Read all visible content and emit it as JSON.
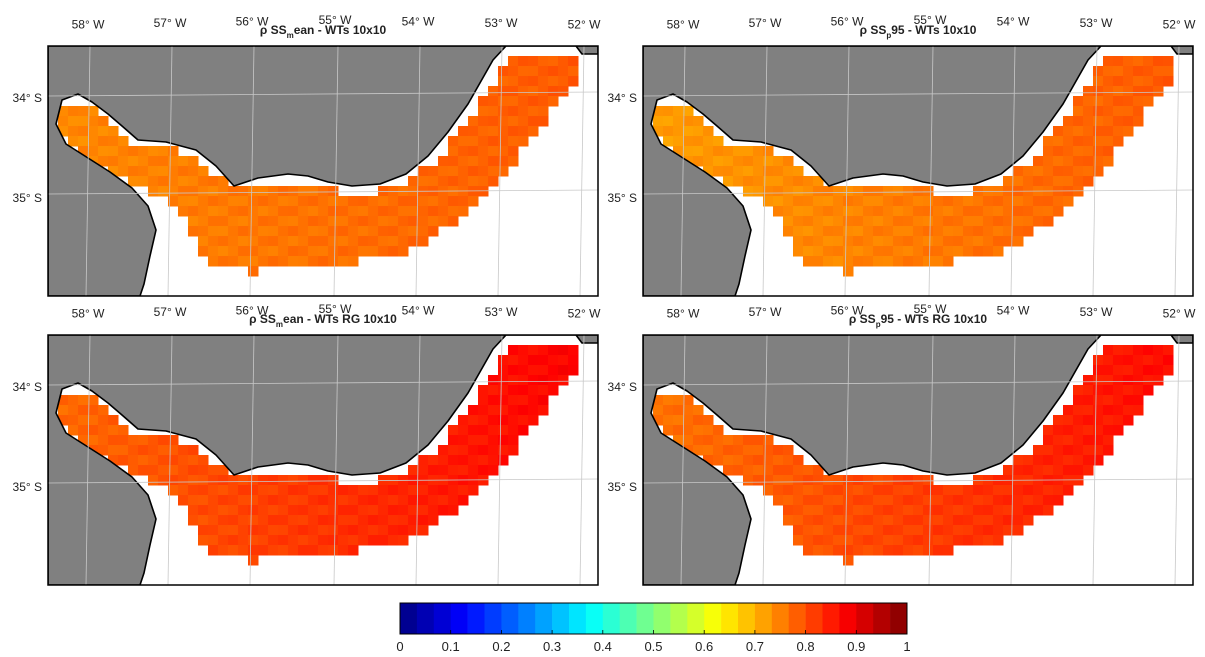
{
  "panels": [
    {
      "title_prefix": "ρ SS",
      "title_sub": "m",
      "title_suffix": "ean - WTs 10x10",
      "lon_labels": [
        "58° W",
        "57° W",
        "56° W",
        "55° W",
        "54° W",
        "53° W",
        "52° W"
      ],
      "lat_labels": [
        "34° S",
        "35° S"
      ],
      "value_west": 0.74,
      "value_east": 0.79
    },
    {
      "title_prefix": "ρ SS",
      "title_sub": "p",
      "title_suffix": "95 - WTs 10x10",
      "lon_labels": [
        "58° W",
        "57° W",
        "56° W",
        "55° W",
        "54° W",
        "53° W",
        "52° W"
      ],
      "lat_labels": [
        "34° S",
        "35° S"
      ],
      "value_west": 0.72,
      "value_east": 0.79
    },
    {
      "title_prefix": "ρ SS",
      "title_sub": "m",
      "title_suffix": "ean - WTs RG 10x10",
      "lon_labels": [
        "58° W",
        "57° W",
        "56° W",
        "55° W",
        "54° W",
        "53° W",
        "52° W"
      ],
      "lat_labels": [
        "34° S",
        "35° S"
      ],
      "value_west": 0.77,
      "value_east": 0.88
    },
    {
      "title_prefix": "ρ SS",
      "title_sub": "p",
      "title_suffix": "95 - WTs RG 10x10",
      "lon_labels": [
        "58° W",
        "57° W",
        "56° W",
        "55° W",
        "54° W",
        "53° W",
        "52° W"
      ],
      "lat_labels": [
        "34° S",
        "35° S"
      ],
      "value_west": 0.76,
      "value_east": 0.87
    }
  ],
  "colorbar": {
    "colormap": "jet",
    "n_levels": 30,
    "min": 0,
    "max": 1,
    "ticks": [
      "0",
      "0.1",
      "0.2",
      "0.3",
      "0.4",
      "0.5",
      "0.6",
      "0.7",
      "0.8",
      "0.9",
      "1"
    ]
  },
  "colors": {
    "land": "#808080",
    "no_data": "#ffffff",
    "coastline": "#000000",
    "graticule": "#c8c8c8",
    "frame": "#000000"
  }
}
